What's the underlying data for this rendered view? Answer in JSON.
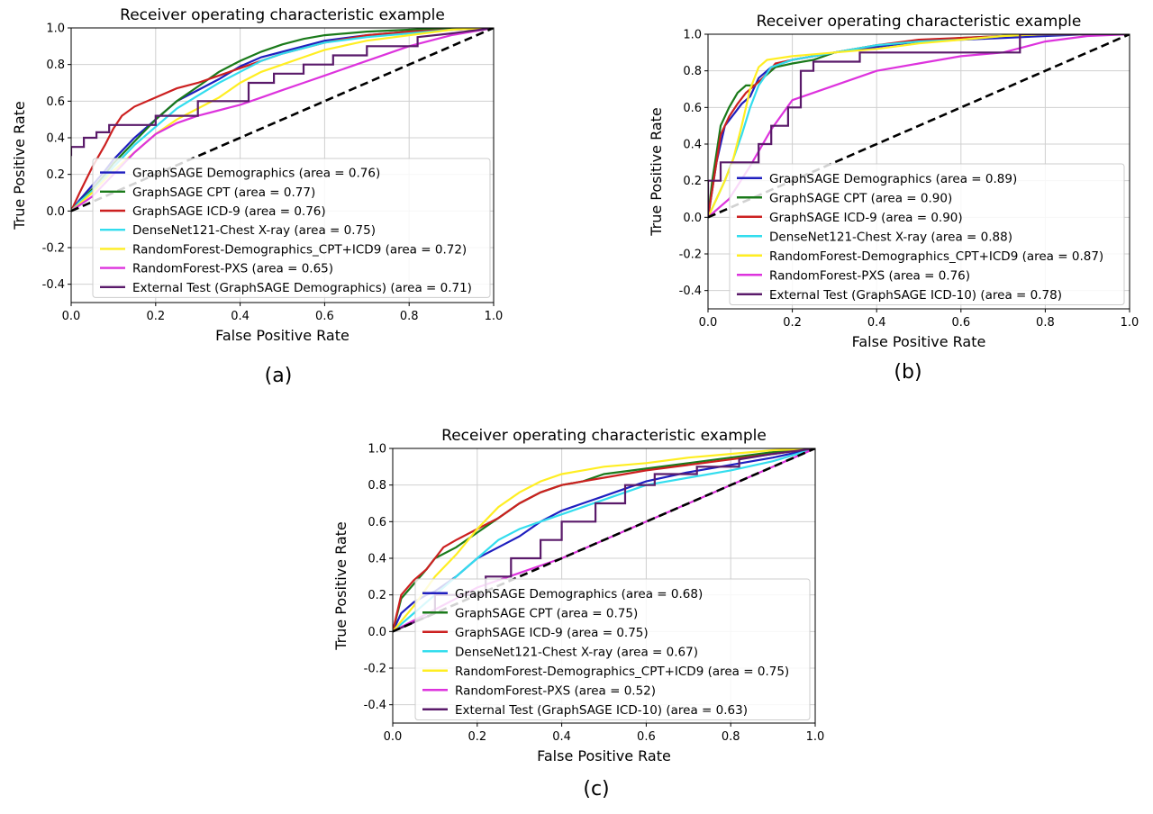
{
  "chart_data": [
    {
      "type": "line",
      "title": "Receiver operating characteristic example",
      "xlabel": "False Positive Rate",
      "ylabel": "True Positive Rate",
      "xlim": [
        0,
        1
      ],
      "ylim": [
        -0.5,
        1
      ],
      "xticks": [
        "0.0",
        "0.2",
        "0.4",
        "0.6",
        "0.8",
        "1.0"
      ],
      "yticks": [
        "-0.4",
        "-0.2",
        "0.0",
        "0.2",
        "0.4",
        "0.6",
        "0.8",
        "1.0"
      ],
      "grid": true,
      "legend_position": "lower-right",
      "panel_label": "(a)",
      "chance_line": {
        "color": "#000000",
        "style": "dashed"
      },
      "series": [
        {
          "name": "GraphSAGE Demographics (area = 0.76)",
          "color": "#1f1fbf",
          "x": [
            0,
            0.02,
            0.05,
            0.08,
            0.1,
            0.15,
            0.2,
            0.25,
            0.3,
            0.35,
            0.4,
            0.45,
            0.5,
            0.55,
            0.6,
            0.7,
            0.8,
            0.9,
            1
          ],
          "y": [
            0,
            0.06,
            0.14,
            0.22,
            0.28,
            0.4,
            0.5,
            0.6,
            0.66,
            0.72,
            0.79,
            0.84,
            0.87,
            0.9,
            0.93,
            0.96,
            0.98,
            0.99,
            1
          ]
        },
        {
          "name": "GraphSAGE CPT (area = 0.77)",
          "color": "#1a7a1a",
          "x": [
            0,
            0.02,
            0.05,
            0.08,
            0.1,
            0.15,
            0.2,
            0.25,
            0.3,
            0.35,
            0.4,
            0.45,
            0.5,
            0.55,
            0.6,
            0.7,
            0.8,
            0.9,
            1
          ],
          "y": [
            0,
            0.05,
            0.12,
            0.2,
            0.26,
            0.38,
            0.5,
            0.6,
            0.68,
            0.76,
            0.82,
            0.87,
            0.91,
            0.94,
            0.96,
            0.98,
            0.99,
            1,
            1
          ]
        },
        {
          "name": "GraphSAGE ICD-9 (area = 0.76)",
          "color": "#cc2020",
          "x": [
            0,
            0.02,
            0.05,
            0.08,
            0.1,
            0.12,
            0.15,
            0.2,
            0.25,
            0.3,
            0.35,
            0.4,
            0.45,
            0.5,
            0.6,
            0.7,
            0.8,
            0.9,
            1
          ],
          "y": [
            0,
            0.1,
            0.24,
            0.36,
            0.45,
            0.52,
            0.57,
            0.62,
            0.67,
            0.7,
            0.74,
            0.78,
            0.82,
            0.86,
            0.92,
            0.96,
            0.98,
            0.99,
            1
          ]
        },
        {
          "name": "DenseNet121-Chest X-ray (area = 0.75)",
          "color": "#33ddee",
          "x": [
            0,
            0.02,
            0.05,
            0.08,
            0.1,
            0.15,
            0.2,
            0.25,
            0.3,
            0.35,
            0.4,
            0.45,
            0.5,
            0.55,
            0.6,
            0.7,
            0.8,
            0.9,
            1
          ],
          "y": [
            0,
            0.05,
            0.11,
            0.18,
            0.24,
            0.36,
            0.46,
            0.56,
            0.63,
            0.7,
            0.76,
            0.82,
            0.86,
            0.89,
            0.92,
            0.95,
            0.97,
            0.99,
            1
          ]
        },
        {
          "name": "RandomForest-Demographics_CPT+ICD9 (area = 0.72)",
          "color": "#ffee22",
          "x": [
            0,
            0.05,
            0.1,
            0.15,
            0.2,
            0.25,
            0.3,
            0.35,
            0.4,
            0.45,
            0.5,
            0.55,
            0.6,
            0.7,
            0.8,
            0.9,
            1
          ],
          "y": [
            0,
            0.1,
            0.22,
            0.32,
            0.42,
            0.5,
            0.56,
            0.62,
            0.7,
            0.76,
            0.8,
            0.84,
            0.88,
            0.93,
            0.96,
            0.99,
            1
          ]
        },
        {
          "name": "RandomForest-PXS (area = 0.65)",
          "color": "#dd33dd",
          "x": [
            0,
            0.05,
            0.1,
            0.15,
            0.2,
            0.25,
            0.3,
            0.35,
            0.4,
            0.45,
            0.5,
            0.55,
            0.6,
            0.65,
            0.7,
            0.8,
            0.9,
            1
          ],
          "y": [
            0,
            0.08,
            0.2,
            0.32,
            0.42,
            0.48,
            0.52,
            0.55,
            0.58,
            0.62,
            0.66,
            0.7,
            0.74,
            0.78,
            0.82,
            0.9,
            0.96,
            1
          ]
        },
        {
          "name": "External Test (GraphSAGE Demographics) (area = 0.71)",
          "color": "#5a1a6a",
          "x": [
            0,
            0,
            0.03,
            0.03,
            0.06,
            0.06,
            0.09,
            0.09,
            0.2,
            0.2,
            0.3,
            0.3,
            0.42,
            0.42,
            0.48,
            0.48,
            0.55,
            0.55,
            0.62,
            0.62,
            0.7,
            0.7,
            0.82,
            0.82,
            0.9,
            1
          ],
          "y": [
            0.3,
            0.35,
            0.35,
            0.4,
            0.4,
            0.43,
            0.43,
            0.47,
            0.47,
            0.52,
            0.52,
            0.6,
            0.6,
            0.7,
            0.7,
            0.75,
            0.75,
            0.8,
            0.8,
            0.85,
            0.85,
            0.9,
            0.9,
            0.95,
            0.97,
            1
          ]
        }
      ]
    },
    {
      "type": "line",
      "title": "Receiver operating characteristic example",
      "xlabel": "False Positive Rate",
      "ylabel": "True Positive Rate",
      "xlim": [
        0,
        1
      ],
      "ylim": [
        -0.5,
        1
      ],
      "xticks": [
        "0.0",
        "0.2",
        "0.4",
        "0.6",
        "0.8",
        "1.0"
      ],
      "yticks": [
        "-0.4",
        "-0.2",
        "0.0",
        "0.2",
        "0.4",
        "0.6",
        "0.8",
        "1.0"
      ],
      "grid": true,
      "legend_position": "lower-right",
      "panel_label": "(b)",
      "chance_line": {
        "color": "#000000",
        "style": "dashed"
      },
      "series": [
        {
          "name": "GraphSAGE Demographics (area = 0.89)",
          "color": "#1f1fbf",
          "x": [
            0,
            0.01,
            0.02,
            0.03,
            0.04,
            0.06,
            0.08,
            0.1,
            0.12,
            0.15,
            0.2,
            0.25,
            0.3,
            0.4,
            0.5,
            0.6,
            0.7,
            0.8,
            0.9,
            1
          ],
          "y": [
            0,
            0.15,
            0.3,
            0.4,
            0.5,
            0.56,
            0.62,
            0.66,
            0.76,
            0.82,
            0.86,
            0.88,
            0.9,
            0.93,
            0.96,
            0.97,
            0.98,
            0.99,
            1,
            1
          ]
        },
        {
          "name": "GraphSAGE CPT (area = 0.90)",
          "color": "#1a7a1a",
          "x": [
            0,
            0.01,
            0.02,
            0.03,
            0.05,
            0.07,
            0.09,
            0.11,
            0.13,
            0.16,
            0.2,
            0.25,
            0.3,
            0.4,
            0.5,
            0.6,
            0.7,
            0.8,
            1
          ],
          "y": [
            0,
            0.2,
            0.35,
            0.5,
            0.6,
            0.68,
            0.72,
            0.72,
            0.76,
            0.82,
            0.84,
            0.86,
            0.9,
            0.94,
            0.96,
            0.98,
            0.99,
            1,
            1
          ]
        },
        {
          "name": "GraphSAGE ICD-9 (area = 0.90)",
          "color": "#cc2020",
          "x": [
            0,
            0.01,
            0.02,
            0.03,
            0.05,
            0.07,
            0.09,
            0.11,
            0.13,
            0.16,
            0.2,
            0.25,
            0.3,
            0.35,
            0.4,
            0.5,
            0.6,
            0.7,
            0.8,
            1
          ],
          "y": [
            0,
            0.15,
            0.3,
            0.45,
            0.55,
            0.62,
            0.68,
            0.72,
            0.76,
            0.84,
            0.86,
            0.88,
            0.9,
            0.92,
            0.94,
            0.97,
            0.98,
            0.99,
            1,
            1
          ]
        },
        {
          "name": "DenseNet121-Chest X-ray (area = 0.88)",
          "color": "#33ddee",
          "x": [
            0,
            0.02,
            0.04,
            0.06,
            0.08,
            0.1,
            0.12,
            0.15,
            0.2,
            0.25,
            0.3,
            0.4,
            0.5,
            0.6,
            0.7,
            0.8,
            1
          ],
          "y": [
            0,
            0.1,
            0.2,
            0.32,
            0.45,
            0.6,
            0.72,
            0.82,
            0.86,
            0.88,
            0.9,
            0.94,
            0.96,
            0.97,
            0.99,
            1,
            1
          ]
        },
        {
          "name": "RandomForest-Demographics_CPT+ICD9 (area = 0.87)",
          "color": "#ffee22",
          "x": [
            0,
            0.02,
            0.04,
            0.06,
            0.08,
            0.1,
            0.12,
            0.14,
            0.2,
            0.3,
            0.4,
            0.5,
            0.6,
            0.7,
            0.8,
            1
          ],
          "y": [
            0,
            0.1,
            0.2,
            0.32,
            0.5,
            0.7,
            0.82,
            0.86,
            0.88,
            0.9,
            0.92,
            0.95,
            0.97,
            0.99,
            1,
            1
          ]
        },
        {
          "name": "RandomForest-PXS (area = 0.76)",
          "color": "#dd33dd",
          "x": [
            0,
            0.05,
            0.1,
            0.15,
            0.2,
            0.25,
            0.3,
            0.35,
            0.4,
            0.5,
            0.6,
            0.7,
            0.8,
            0.9,
            1
          ],
          "y": [
            0,
            0.1,
            0.28,
            0.48,
            0.64,
            0.68,
            0.72,
            0.76,
            0.8,
            0.84,
            0.88,
            0.9,
            0.96,
            0.99,
            1
          ]
        },
        {
          "name": "External Test (GraphSAGE ICD-10) (area = 0.78)",
          "color": "#5a1a6a",
          "x": [
            0,
            0,
            0.03,
            0.03,
            0.12,
            0.12,
            0.15,
            0.15,
            0.19,
            0.19,
            0.22,
            0.22,
            0.25,
            0.25,
            0.36,
            0.36,
            0.74,
            0.74,
            1
          ],
          "y": [
            0,
            0.2,
            0.2,
            0.3,
            0.3,
            0.4,
            0.4,
            0.5,
            0.5,
            0.6,
            0.6,
            0.8,
            0.8,
            0.85,
            0.85,
            0.9,
            0.9,
            1,
            1
          ]
        }
      ]
    },
    {
      "type": "line",
      "title": "Receiver operating characteristic example",
      "xlabel": "False Positive Rate",
      "ylabel": "True Positive Rate",
      "xlim": [
        0,
        1
      ],
      "ylim": [
        -0.5,
        1
      ],
      "xticks": [
        "0.0",
        "0.2",
        "0.4",
        "0.6",
        "0.8",
        "1.0"
      ],
      "yticks": [
        "-0.4",
        "-0.2",
        "0.0",
        "0.2",
        "0.4",
        "0.6",
        "0.8",
        "1.0"
      ],
      "grid": true,
      "legend_position": "lower-right",
      "panel_label": "(c)",
      "chance_line": {
        "color": "#000000",
        "style": "dashed"
      },
      "series": [
        {
          "name": "GraphSAGE Demographics (area = 0.68)",
          "color": "#1f1fbf",
          "x": [
            0,
            0.02,
            0.05,
            0.08,
            0.1,
            0.15,
            0.2,
            0.25,
            0.3,
            0.35,
            0.4,
            0.45,
            0.5,
            0.55,
            0.6,
            0.7,
            0.8,
            0.9,
            1
          ],
          "y": [
            0,
            0.1,
            0.16,
            0.2,
            0.22,
            0.3,
            0.4,
            0.46,
            0.52,
            0.6,
            0.66,
            0.7,
            0.74,
            0.78,
            0.82,
            0.87,
            0.91,
            0.95,
            1
          ]
        },
        {
          "name": "GraphSAGE CPT (area = 0.75)",
          "color": "#1a7a1a",
          "x": [
            0,
            0.02,
            0.05,
            0.08,
            0.1,
            0.15,
            0.2,
            0.25,
            0.3,
            0.35,
            0.4,
            0.45,
            0.5,
            0.6,
            0.7,
            0.8,
            0.9,
            1
          ],
          "y": [
            0,
            0.18,
            0.26,
            0.34,
            0.4,
            0.46,
            0.54,
            0.62,
            0.7,
            0.76,
            0.8,
            0.82,
            0.86,
            0.89,
            0.92,
            0.95,
            0.98,
            1
          ]
        },
        {
          "name": "GraphSAGE ICD-9 (area = 0.75)",
          "color": "#cc2020",
          "x": [
            0,
            0.02,
            0.05,
            0.08,
            0.1,
            0.12,
            0.15,
            0.2,
            0.25,
            0.3,
            0.35,
            0.4,
            0.45,
            0.5,
            0.6,
            0.7,
            0.8,
            0.9,
            1
          ],
          "y": [
            0,
            0.2,
            0.28,
            0.34,
            0.4,
            0.46,
            0.5,
            0.56,
            0.62,
            0.7,
            0.76,
            0.8,
            0.82,
            0.84,
            0.88,
            0.91,
            0.94,
            0.97,
            1
          ]
        },
        {
          "name": "DenseNet121-Chest X-ray (area = 0.67)",
          "color": "#33ddee",
          "x": [
            0,
            0.02,
            0.05,
            0.1,
            0.15,
            0.2,
            0.25,
            0.3,
            0.35,
            0.4,
            0.45,
            0.5,
            0.55,
            0.6,
            0.7,
            0.8,
            0.9,
            1
          ],
          "y": [
            0,
            0.04,
            0.1,
            0.2,
            0.3,
            0.4,
            0.5,
            0.56,
            0.6,
            0.64,
            0.68,
            0.72,
            0.76,
            0.8,
            0.84,
            0.88,
            0.93,
            1
          ]
        },
        {
          "name": "RandomForest-Demographics_CPT+ICD9 (area = 0.75)",
          "color": "#ffee22",
          "x": [
            0,
            0.05,
            0.1,
            0.15,
            0.2,
            0.25,
            0.3,
            0.35,
            0.4,
            0.45,
            0.5,
            0.6,
            0.7,
            0.8,
            0.9,
            1
          ],
          "y": [
            0,
            0.14,
            0.3,
            0.42,
            0.56,
            0.68,
            0.76,
            0.82,
            0.86,
            0.88,
            0.9,
            0.92,
            0.95,
            0.97,
            0.99,
            1
          ]
        },
        {
          "name": "RandomForest-PXS (area = 0.52)",
          "color": "#dd33dd",
          "x": [
            0,
            0.1,
            0.2,
            0.3,
            0.4,
            0.5,
            0.6,
            0.7,
            0.8,
            0.9,
            1
          ],
          "y": [
            0,
            0.12,
            0.24,
            0.32,
            0.4,
            0.5,
            0.6,
            0.7,
            0.8,
            0.9,
            1
          ]
        },
        {
          "name": "External Test (GraphSAGE ICD-10) (area = 0.63)",
          "color": "#5a1a6a",
          "x": [
            0,
            0.1,
            0.1,
            0.22,
            0.22,
            0.28,
            0.28,
            0.35,
            0.35,
            0.4,
            0.4,
            0.48,
            0.48,
            0.55,
            0.55,
            0.62,
            0.62,
            0.72,
            0.72,
            0.82,
            0.82,
            0.9,
            1
          ],
          "y": [
            0,
            0.1,
            0.2,
            0.2,
            0.3,
            0.3,
            0.4,
            0.4,
            0.5,
            0.5,
            0.6,
            0.6,
            0.7,
            0.7,
            0.8,
            0.8,
            0.86,
            0.86,
            0.9,
            0.9,
            0.94,
            0.97,
            1
          ]
        }
      ]
    }
  ]
}
